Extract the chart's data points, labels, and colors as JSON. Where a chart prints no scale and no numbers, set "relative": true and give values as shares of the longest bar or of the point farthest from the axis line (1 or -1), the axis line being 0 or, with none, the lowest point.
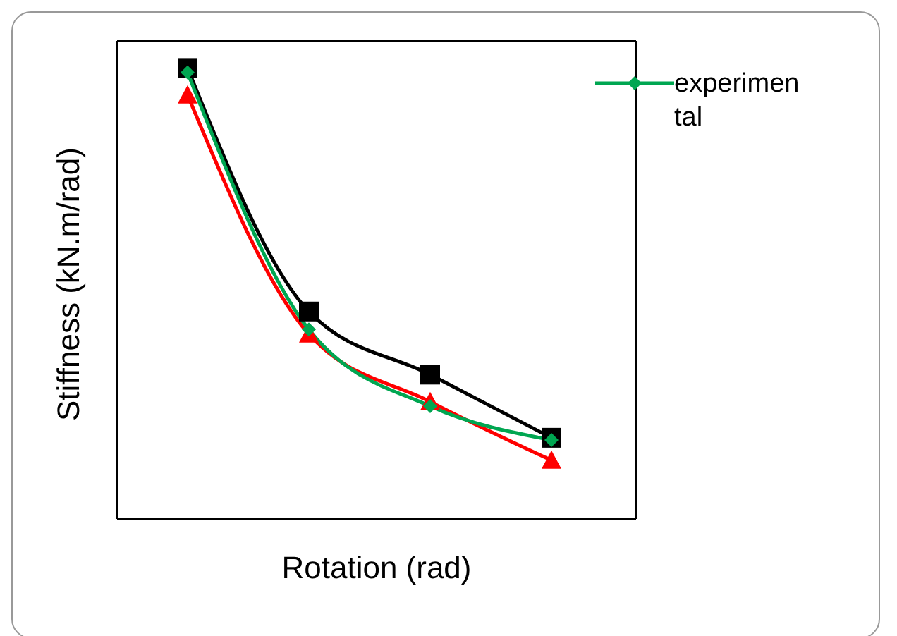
{
  "chart_data": {
    "type": "line",
    "relative": true,
    "xlabel": "Rotation (rad)",
    "ylabel": "Stiffness (kN.m/rad)",
    "categories": [
      null,
      null,
      null,
      null
    ],
    "legend": "top right",
    "grid": false,
    "series": [
      {
        "color": "#000000",
        "marker": "square",
        "values": [
          1,
          0.46,
          0.32,
          0.18
        ]
      },
      {
        "color": "#ff0000",
        "marker": "triangle",
        "values": [
          0.94,
          0.41,
          0.26,
          0.13
        ]
      },
      {
        "name": "experimental",
        "color": "#00a651",
        "marker": "diamond",
        "values": [
          0.99,
          0.42,
          0.25,
          0.175
        ]
      }
    ]
  }
}
